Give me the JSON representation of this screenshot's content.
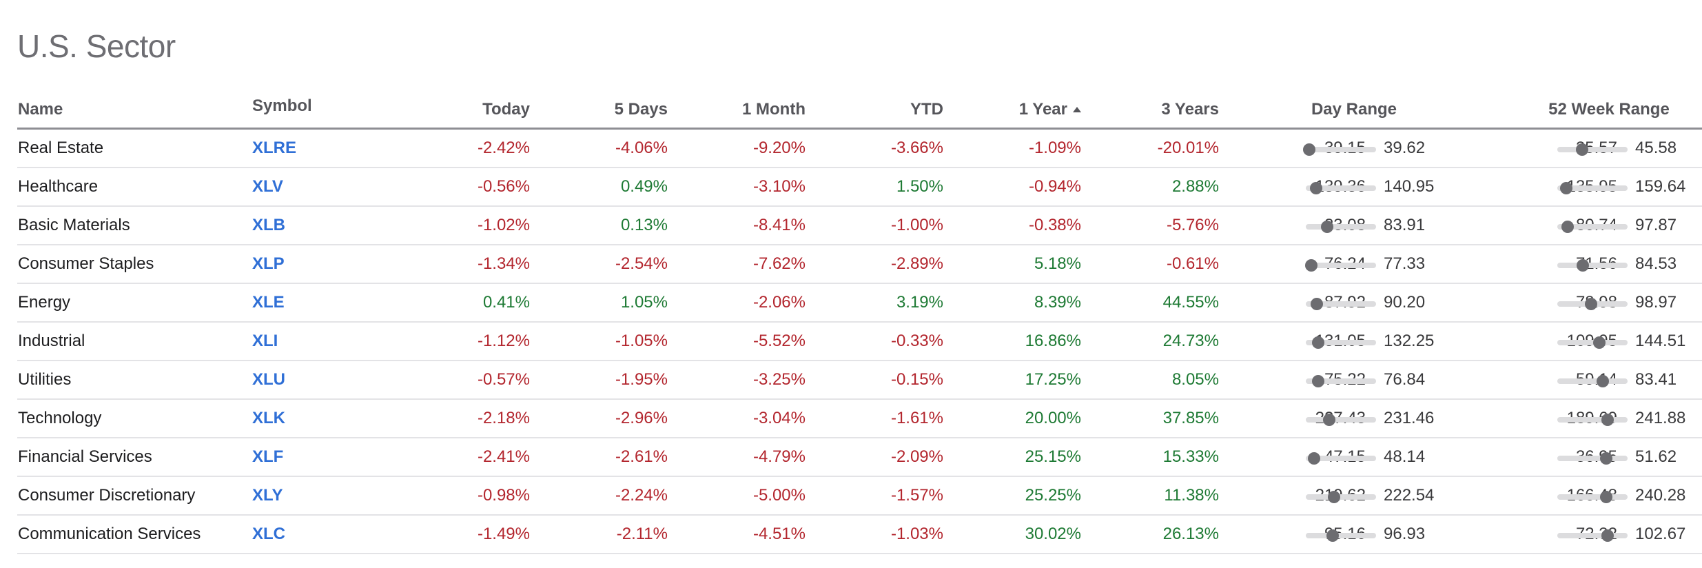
{
  "page": {
    "title": "U.S. Sector"
  },
  "headers": {
    "name": "Name",
    "symbol": "Symbol",
    "today": "Today",
    "five_days": "5 Days",
    "one_month": "1 Month",
    "ytd": "YTD",
    "one_year": "1 Year",
    "three_years": "3 Years",
    "day_range": "Day Range",
    "week52_range": "52 Week Range"
  },
  "sort": {
    "column": "one_year",
    "direction": "ascending",
    "icon": "sort-ascending-icon"
  },
  "colors": {
    "negative": "#b3262e",
    "positive": "#1e7a34",
    "symbol": "#2f6fd6"
  },
  "rows": [
    {
      "name": "Real Estate",
      "symbol": "XLRE",
      "today": "-2.42%",
      "five_days": "-4.06%",
      "one_month": "-9.20%",
      "ytd": "-3.66%",
      "one_year": "-1.09%",
      "three_years": "-20.01%",
      "day_low": "39.15",
      "day_high": "39.62",
      "day_pos": 0.05,
      "wk_low": "35.57",
      "wk_high": "45.58",
      "wk_pos": 0.35
    },
    {
      "name": "Healthcare",
      "symbol": "XLV",
      "today": "-0.56%",
      "five_days": "0.49%",
      "one_month": "-3.10%",
      "ytd": "1.50%",
      "one_year": "-0.94%",
      "three_years": "2.88%",
      "day_low": "139.36",
      "day_high": "140.95",
      "day_pos": 0.15,
      "wk_low": "135.95",
      "wk_high": "159.64",
      "wk_pos": 0.13
    },
    {
      "name": "Basic Materials",
      "symbol": "XLB",
      "today": "-1.02%",
      "five_days": "0.13%",
      "one_month": "-8.41%",
      "ytd": "-1.00%",
      "one_year": "-0.38%",
      "three_years": "-5.76%",
      "day_low": "83.08",
      "day_high": "83.91",
      "day_pos": 0.3,
      "wk_low": "80.74",
      "wk_high": "97.87",
      "wk_pos": 0.15
    },
    {
      "name": "Consumer Staples",
      "symbol": "XLP",
      "today": "-1.34%",
      "five_days": "-2.54%",
      "one_month": "-7.62%",
      "ytd": "-2.89%",
      "one_year": "5.18%",
      "three_years": "-0.61%",
      "day_low": "76.24",
      "day_high": "77.33",
      "day_pos": 0.08,
      "wk_low": "71.56",
      "wk_high": "84.53",
      "wk_pos": 0.36
    },
    {
      "name": "Energy",
      "symbol": "XLE",
      "today": "0.41%",
      "five_days": "1.05%",
      "one_month": "-2.06%",
      "ytd": "3.19%",
      "one_year": "8.39%",
      "three_years": "44.55%",
      "day_low": "87.92",
      "day_high": "90.20",
      "day_pos": 0.16,
      "wk_low": "78.98",
      "wk_high": "98.97",
      "wk_pos": 0.48
    },
    {
      "name": "Industrial",
      "symbol": "XLI",
      "today": "-1.12%",
      "five_days": "-1.05%",
      "one_month": "-5.52%",
      "ytd": "-0.33%",
      "one_year": "16.86%",
      "three_years": "24.73%",
      "day_low": "131.05",
      "day_high": "132.25",
      "day_pos": 0.18,
      "wk_low": "109.95",
      "wk_high": "144.51",
      "wk_pos": 0.6
    },
    {
      "name": "Utilities",
      "symbol": "XLU",
      "today": "-0.57%",
      "five_days": "-1.95%",
      "one_month": "-3.25%",
      "ytd": "-0.15%",
      "one_year": "17.25%",
      "three_years": "8.05%",
      "day_low": "75.22",
      "day_high": "76.84",
      "day_pos": 0.18,
      "wk_low": "59.14",
      "wk_high": "83.41",
      "wk_pos": 0.65
    },
    {
      "name": "Technology",
      "symbol": "XLK",
      "today": "-2.18%",
      "five_days": "-2.96%",
      "one_month": "-3.04%",
      "ytd": "-1.61%",
      "one_year": "20.00%",
      "three_years": "37.85%",
      "day_low": "227.43",
      "day_high": "231.46",
      "day_pos": 0.33,
      "wk_low": "189.69",
      "wk_high": "241.88",
      "wk_pos": 0.72
    },
    {
      "name": "Financial Services",
      "symbol": "XLF",
      "today": "-2.41%",
      "five_days": "-2.61%",
      "one_month": "-4.79%",
      "ytd": "-2.09%",
      "one_year": "25.15%",
      "three_years": "15.33%",
      "day_low": "47.15",
      "day_high": "48.14",
      "day_pos": 0.12,
      "wk_low": "36.95",
      "wk_high": "51.62",
      "wk_pos": 0.7
    },
    {
      "name": "Consumer Discretionary",
      "symbol": "XLY",
      "today": "-0.98%",
      "five_days": "-2.24%",
      "one_month": "-5.00%",
      "ytd": "-1.57%",
      "one_year": "25.25%",
      "three_years": "11.38%",
      "day_low": "219.62",
      "day_high": "222.54",
      "day_pos": 0.4,
      "wk_low": "166.48",
      "wk_high": "240.28",
      "wk_pos": 0.7
    },
    {
      "name": "Communication Services",
      "symbol": "XLC",
      "today": "-1.49%",
      "five_days": "-2.11%",
      "one_month": "-4.51%",
      "ytd": "-1.03%",
      "one_year": "30.02%",
      "three_years": "26.13%",
      "day_low": "95.16",
      "day_high": "96.93",
      "day_pos": 0.38,
      "wk_low": "72.32",
      "wk_high": "102.67",
      "wk_pos": 0.72
    }
  ]
}
